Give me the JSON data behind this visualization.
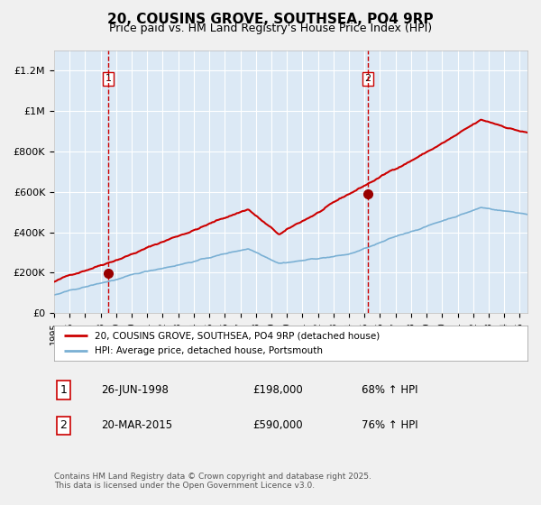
{
  "title": "20, COUSINS GROVE, SOUTHSEA, PO4 9RP",
  "subtitle": "Price paid vs. HM Land Registry's House Price Index (HPI)",
  "title_fontsize": 11,
  "subtitle_fontsize": 9,
  "plot_bg_color": "#dce9f5",
  "fig_bg_color": "#f0f0f0",
  "red_line_color": "#cc0000",
  "blue_line_color": "#7ab0d4",
  "marker_color": "#990000",
  "vline_color": "#cc0000",
  "ylim": [
    0,
    1300000
  ],
  "yticks": [
    0,
    200000,
    400000,
    600000,
    800000,
    1000000,
    1200000
  ],
  "ytick_labels": [
    "£0",
    "£200K",
    "£400K",
    "£600K",
    "£800K",
    "£1M",
    "£1.2M"
  ],
  "xstart": 1995,
  "xend": 2025,
  "xtick_years": [
    1995,
    1996,
    1997,
    1998,
    1999,
    2000,
    2001,
    2002,
    2003,
    2004,
    2005,
    2006,
    2007,
    2008,
    2009,
    2010,
    2011,
    2012,
    2013,
    2014,
    2015,
    2016,
    2017,
    2018,
    2019,
    2020,
    2021,
    2022,
    2023,
    2024,
    2025
  ],
  "purchase1_x": 1998.49,
  "purchase1_y": 198000,
  "purchase1_label": "1",
  "purchase2_x": 2015.22,
  "purchase2_y": 590000,
  "purchase2_label": "2",
  "legend_line1": "20, COUSINS GROVE, SOUTHSEA, PO4 9RP (detached house)",
  "legend_line2": "HPI: Average price, detached house, Portsmouth",
  "table_row1_num": "1",
  "table_row1_date": "26-JUN-1998",
  "table_row1_price": "£198,000",
  "table_row1_hpi": "68% ↑ HPI",
  "table_row2_num": "2",
  "table_row2_date": "20-MAR-2015",
  "table_row2_price": "£590,000",
  "table_row2_hpi": "76% ↑ HPI",
  "footnote": "Contains HM Land Registry data © Crown copyright and database right 2025.\nThis data is licensed under the Open Government Licence v3.0."
}
